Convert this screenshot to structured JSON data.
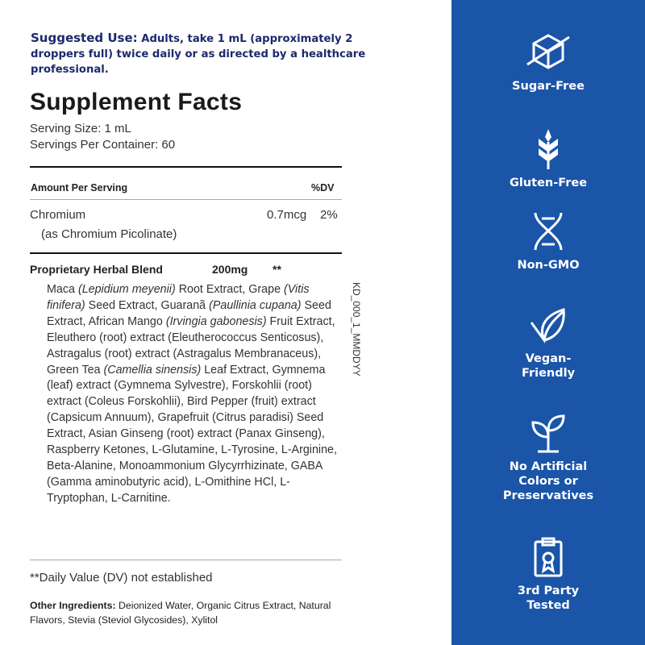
{
  "suggested_use": {
    "label": "Suggested Use:",
    "text": "Adults, take 1 mL (approximately 2 droppers full)  twice daily or as directed by a healthcare professional."
  },
  "title": "Supplement Facts",
  "serving_size": "Serving Size: 1 mL",
  "servings_per_container": "Servings Per Container: 60",
  "table": {
    "amount_header": "Amount Per Serving",
    "dv_header": "%DV",
    "rows": [
      {
        "name": "Chromium",
        "sub": "(as Chromium Picolinate)",
        "amount": "0.7mcg",
        "dv": "2%"
      }
    ]
  },
  "blend": {
    "name": "Proprietary Herbal Blend",
    "amount": "200mg",
    "dv": "**",
    "ingredients_html": "Maca <i>(Lepidium meyenii)</i> Root Extract, Grape <i>(Vitis finifera)</i> Seed Extract, Guaranã <i>(Paullinia cupana)</i> Seed Extract, African Mango <i>(Irvingia gabonesis)</i> Fruit Extract, Eleuthero (root) extract (Eleutherococcus Senticosus), Astragalus (root) extract (Astragalus Membranaceus), Green Tea <i>(Camellia sinensis)</i> Leaf Extract, Gymnema (leaf) extract (Gymnema Sylvestre), Forskohlii (root) extract (Coleus Forskohlii), Bird Pepper (fruit) extract (Capsicum Annuum), Grapefruit (Citrus paradisi) Seed Extract, Asian Ginseng (root) extract (Panax Ginseng), Raspberry Ketones, L-Glutamine, L-Tyrosine, L-Arginine, Beta-Alanine, Monoammonium Glycyrrhizinate, GABA (Gamma aminobutyric acid), L-Omithine HCl, L-Tryptophan, L-Carnitine."
  },
  "lot_code": "KD_000_1_MMDDYY",
  "footnote": "**Daily Value (DV) not established",
  "other": {
    "label": "Other Ingredients:",
    "text": "Deionized Water, Organic Citrus Extract, Natural Flavors, Stevia (Steviol Glycosides), Xylitol"
  },
  "colors": {
    "panel": "#1a55a8",
    "suggested_use": "#1b2a6b"
  },
  "badges": [
    {
      "icon": "sugar-cube-crossed",
      "label": "Sugar-Free"
    },
    {
      "icon": "wheat",
      "label": "Gluten-Free"
    },
    {
      "icon": "dna",
      "label": "Non-GMO"
    },
    {
      "icon": "leaf-check",
      "label": "Vegan-\nFriendly"
    },
    {
      "icon": "sprout",
      "label": "No Artificial\nColors or\nPreservatives"
    },
    {
      "icon": "clipboard-award",
      "label": "3rd Party\nTested"
    }
  ]
}
